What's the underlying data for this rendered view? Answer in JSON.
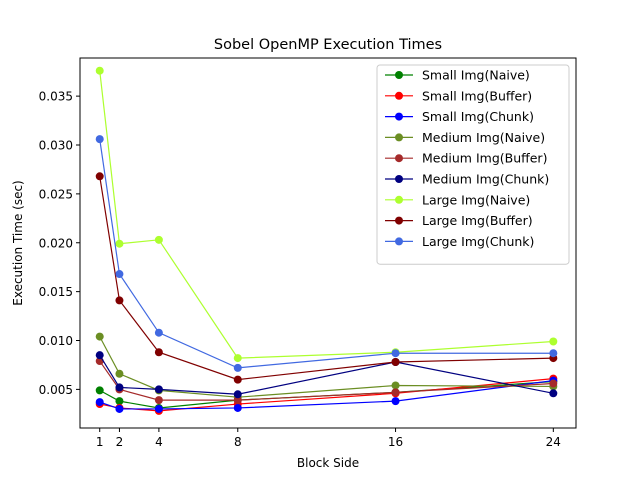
{
  "chart_data": {
    "type": "line",
    "title": "Sobel OpenMP Execution Times",
    "xlabel": "Block Side",
    "ylabel": "Execution Time (sec)",
    "x": [
      1,
      2,
      4,
      8,
      16,
      24
    ],
    "xlim": [
      0.0,
      25.15
    ],
    "ylim": [
      0.00105,
      0.0389
    ],
    "xticks": [
      1,
      2,
      4,
      8,
      16,
      24
    ],
    "xtick_labels": [
      "1",
      "2",
      "4",
      "8",
      "16",
      "24"
    ],
    "yticks": [
      0.005,
      0.01,
      0.015,
      0.02,
      0.025,
      0.03,
      0.035
    ],
    "ytick_labels": [
      "0.005",
      "0.010",
      "0.015",
      "0.020",
      "0.025",
      "0.030",
      "0.035"
    ],
    "grid": false,
    "legend_position": "top-right",
    "series": [
      {
        "name": "Small Img(Naive)",
        "color": "#008000",
        "values": [
          0.0049,
          0.0038,
          0.0031,
          0.0039,
          0.0047,
          0.0058
        ]
      },
      {
        "name": "Small Img(Buffer)",
        "color": "#ff0000",
        "values": [
          0.0035,
          0.0031,
          0.0028,
          0.0035,
          0.0046,
          0.0061
        ]
      },
      {
        "name": "Small Img(Chunk)",
        "color": "#0000ff",
        "values": [
          0.0037,
          0.003,
          0.003,
          0.0031,
          0.0038,
          0.0059
        ]
      },
      {
        "name": "Medium Img(Naive)",
        "color": "#6b8e23",
        "values": [
          0.0104,
          0.0066,
          0.0049,
          0.0042,
          0.0054,
          0.0053
        ]
      },
      {
        "name": "Medium Img(Buffer)",
        "color": "#a52a2a",
        "values": [
          0.0079,
          0.005,
          0.0039,
          0.0039,
          0.0047,
          0.0056
        ]
      },
      {
        "name": "Medium Img(Chunk)",
        "color": "#000080",
        "values": [
          0.0085,
          0.0052,
          0.005,
          0.0045,
          0.0078,
          0.0046
        ]
      },
      {
        "name": "Large Img(Naive)",
        "color": "#adff2f",
        "values": [
          0.0376,
          0.0199,
          0.0203,
          0.0082,
          0.0088,
          0.0099
        ]
      },
      {
        "name": "Large Img(Buffer)",
        "color": "#800000",
        "values": [
          0.0268,
          0.0141,
          0.0088,
          0.006,
          0.0078,
          0.0082
        ]
      },
      {
        "name": "Large Img(Chunk)",
        "color": "#4169e1",
        "values": [
          0.0306,
          0.0168,
          0.0108,
          0.0072,
          0.0087,
          0.0087
        ]
      }
    ]
  }
}
